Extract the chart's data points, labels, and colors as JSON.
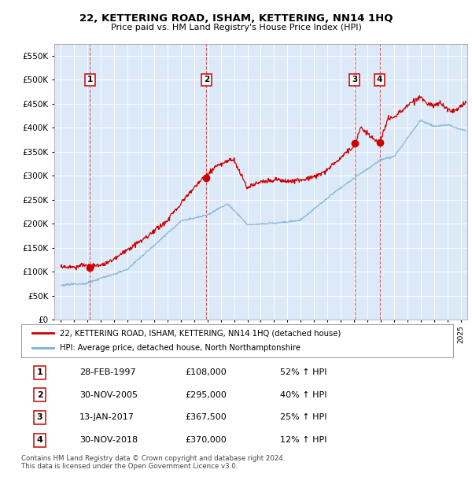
{
  "title": "22, KETTERING ROAD, ISHAM, KETTERING, NN14 1HQ",
  "subtitle": "Price paid vs. HM Land Registry's House Price Index (HPI)",
  "legend_label_red": "22, KETTERING ROAD, ISHAM, KETTERING, NN14 1HQ (detached house)",
  "legend_label_blue": "HPI: Average price, detached house, North Northamptonshire",
  "footer": "Contains HM Land Registry data © Crown copyright and database right 2024.\nThis data is licensed under the Open Government Licence v3.0.",
  "sales": [
    {
      "num": 1,
      "date_label": "28-FEB-1997",
      "date_x": 1997.16,
      "price": 108000,
      "pct": "52%",
      "dir": "↑"
    },
    {
      "num": 2,
      "date_label": "30-NOV-2005",
      "date_x": 2005.92,
      "price": 295000,
      "pct": "40%",
      "dir": "↑"
    },
    {
      "num": 3,
      "date_label": "13-JAN-2017",
      "date_x": 2017.04,
      "price": 367500,
      "pct": "25%",
      "dir": "↑"
    },
    {
      "num": 4,
      "date_label": "30-NOV-2018",
      "date_x": 2018.92,
      "price": 370000,
      "pct": "12%",
      "dir": "↑"
    }
  ],
  "table_rows": [
    [
      "1",
      "28-FEB-1997",
      "£108,000",
      "52% ↑ HPI"
    ],
    [
      "2",
      "30-NOV-2005",
      "£295,000",
      "40% ↑ HPI"
    ],
    [
      "3",
      "13-JAN-2017",
      "£367,500",
      "25% ↑ HPI"
    ],
    [
      "4",
      "30-NOV-2018",
      "£370,000",
      "12% ↑ HPI"
    ]
  ],
  "ylim": [
    0,
    575000
  ],
  "yticks": [
    0,
    50000,
    100000,
    150000,
    200000,
    250000,
    300000,
    350000,
    400000,
    450000,
    500000,
    550000
  ],
  "xlim_start": 1994.5,
  "xlim_end": 2025.5,
  "plot_bg": "#dce9f8",
  "red_color": "#cc0000",
  "blue_color": "#7ab0d4"
}
